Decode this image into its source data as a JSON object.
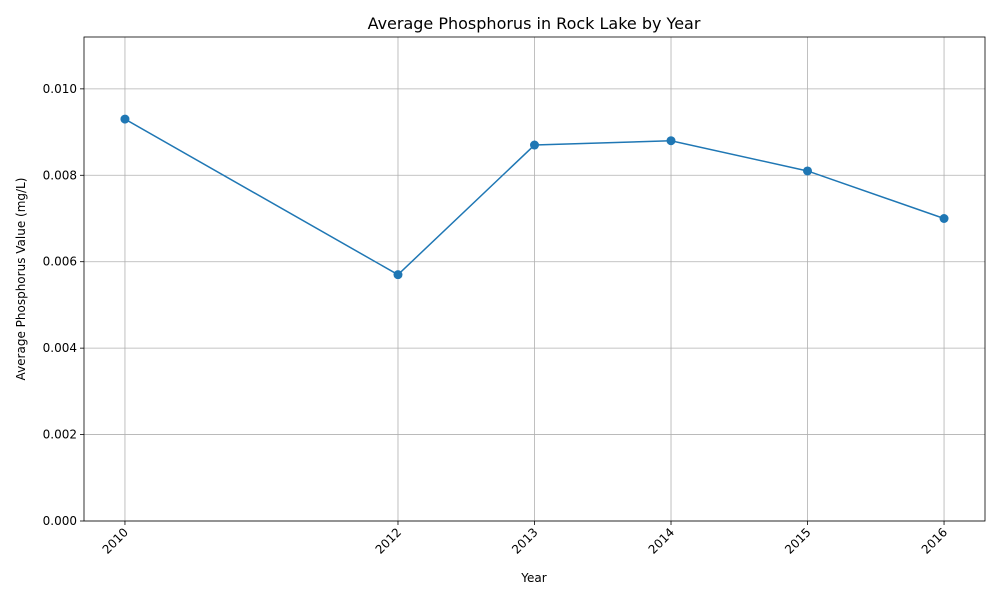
{
  "chart_data": {
    "type": "line",
    "title": "Average Phosphorus in Rock Lake by Year",
    "xlabel": "Year",
    "ylabel": "Average Phosphorus Value (mg/L)",
    "x": [
      2010,
      2012,
      2013,
      2014,
      2015,
      2016
    ],
    "x_tick_labels": [
      "2010",
      "2012",
      "2013",
      "2014",
      "2015",
      "2016"
    ],
    "xlim": [
      2009.7,
      2016.3
    ],
    "ylim": [
      0,
      0.0112
    ],
    "y_ticks": [
      0,
      0.002,
      0.004,
      0.006,
      0.008,
      0.01
    ],
    "y_tick_labels": [
      "0.000",
      "0.002",
      "0.004",
      "0.006",
      "0.008",
      "0.010"
    ],
    "grid": true,
    "legend": "none",
    "series": [
      {
        "color": "#1f77b4",
        "marker": "circle",
        "values": [
          0.0093,
          0.0057,
          0.0087,
          0.0088,
          0.0081,
          0.007
        ]
      }
    ]
  }
}
